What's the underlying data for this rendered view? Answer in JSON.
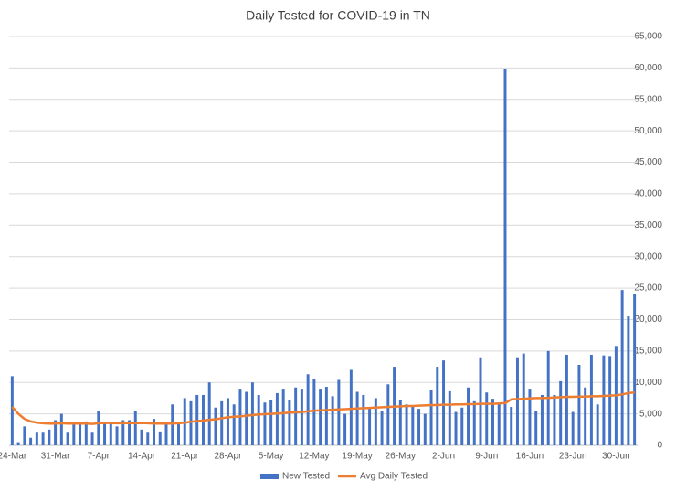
{
  "chart_data": {
    "type": "bar",
    "title": "Daily Tested for COVID-19 in TN",
    "categories": [
      "24-Mar",
      null,
      null,
      null,
      null,
      null,
      null,
      "31-Mar",
      null,
      null,
      null,
      null,
      null,
      null,
      "7-Apr",
      null,
      null,
      null,
      null,
      null,
      null,
      "14-Apr",
      null,
      null,
      null,
      null,
      null,
      null,
      "21-Apr",
      null,
      null,
      null,
      null,
      null,
      null,
      "28-Apr",
      null,
      null,
      null,
      null,
      null,
      null,
      "5-May",
      null,
      null,
      null,
      null,
      null,
      null,
      "12-May",
      null,
      null,
      null,
      null,
      null,
      null,
      "19-May",
      null,
      null,
      null,
      null,
      null,
      null,
      "26-May",
      null,
      null,
      null,
      null,
      null,
      null,
      "2-Jun",
      null,
      null,
      null,
      null,
      null,
      null,
      "9-Jun",
      null,
      null,
      null,
      null,
      null,
      null,
      "16-Jun",
      null,
      null,
      null,
      null,
      null,
      null,
      "23-Jun",
      null,
      null,
      null,
      null,
      null,
      null,
      "30-Jun",
      null,
      null,
      null
    ],
    "series": [
      {
        "name": "New Tested",
        "type": "bar",
        "color": "#4472c4",
        "values": [
          11000,
          500,
          3000,
          1200,
          2000,
          2000,
          2500,
          4000,
          5000,
          2000,
          3500,
          3500,
          3800,
          2000,
          5500,
          3500,
          3500,
          3000,
          4000,
          4000,
          5500,
          2500,
          2000,
          4200,
          2200,
          3500,
          6500,
          3500,
          7500,
          7000,
          8000,
          8000,
          10000,
          6000,
          7000,
          7500,
          6500,
          9000,
          8500,
          10000,
          8000,
          6800,
          7200,
          8300,
          9000,
          7200,
          9200,
          9000,
          11300,
          10600,
          9000,
          9300,
          7800,
          10400,
          5000,
          12000,
          8500,
          8000,
          6000,
          7500,
          5500,
          9700,
          12500,
          7200,
          6500,
          6200,
          5800,
          5000,
          8800,
          12500,
          13500,
          8600,
          5300,
          6000,
          9200,
          7000,
          14000,
          8400,
          7400,
          6600,
          59800,
          6100,
          14000,
          14600,
          9000,
          5500,
          8000,
          15000,
          8000,
          10200,
          14400,
          5300,
          12800,
          9200,
          14400,
          6500,
          14300,
          14200,
          15800,
          24700,
          20500,
          24000
        ]
      },
      {
        "name": "Avg Daily Tested",
        "type": "line",
        "color": "#ed7d31",
        "values": [
          6100,
          5000,
          4200,
          3800,
          3600,
          3500,
          3450,
          3450,
          3500,
          3450,
          3450,
          3450,
          3450,
          3400,
          3500,
          3550,
          3550,
          3500,
          3500,
          3550,
          3500,
          3550,
          3500,
          3450,
          3450,
          3450,
          3450,
          3500,
          3600,
          3750,
          3850,
          3950,
          4050,
          4150,
          4300,
          4450,
          4550,
          4600,
          4700,
          4800,
          4900,
          4950,
          5000,
          5050,
          5100,
          5200,
          5250,
          5300,
          5400,
          5500,
          5550,
          5600,
          5650,
          5700,
          5750,
          5800,
          5850,
          5900,
          5950,
          6000,
          6050,
          6100,
          6150,
          6200,
          6250,
          6250,
          6300,
          6350,
          6400,
          6400,
          6450,
          6450,
          6500,
          6500,
          6550,
          6550,
          6600,
          6600,
          6600,
          6650,
          6700,
          7300,
          7350,
          7400,
          7450,
          7500,
          7500,
          7550,
          7600,
          7650,
          7700,
          7700,
          7750,
          7750,
          7800,
          7800,
          7850,
          7900,
          7950,
          8100,
          8300,
          8400
        ]
      }
    ],
    "ylim": [
      0,
      65000
    ],
    "yticks": [
      0,
      {
        "value": 5000,
        "label": "5,000"
      },
      {
        "value": 10000,
        "label": "10,000"
      },
      {
        "value": 15000,
        "label": "15,000"
      },
      {
        "value": 20000,
        "label": "20,000"
      },
      {
        "value": 25000,
        "label": "25,000"
      },
      {
        "value": 30000,
        "label": "30,000"
      },
      {
        "value": 35000,
        "label": "35,000"
      },
      {
        "value": 40000,
        "label": "40,000"
      },
      {
        "value": 45000,
        "label": "45,000"
      },
      {
        "value": 50000,
        "label": "50,000"
      },
      {
        "value": 55000,
        "label": "55,000"
      },
      {
        "value": 60000,
        "label": "60,000"
      },
      {
        "value": 65000,
        "label": "65,000"
      }
    ],
    "grid": true,
    "legend": "bottom"
  }
}
